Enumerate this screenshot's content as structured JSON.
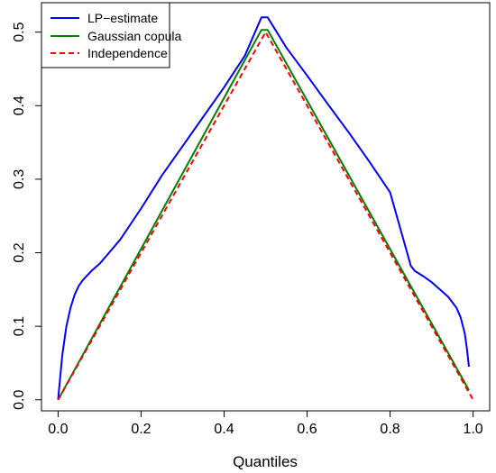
{
  "chart_data": {
    "type": "line",
    "xlabel": "Quantiles",
    "ylabel": "",
    "xlim": [
      -0.04,
      1.04
    ],
    "ylim": [
      -0.015,
      0.54
    ],
    "xticks": [
      0.0,
      0.2,
      0.4,
      0.6,
      0.8,
      1.0
    ],
    "xtick_labels": [
      "0.0",
      "0.2",
      "0.4",
      "0.6",
      "0.8",
      "1.0"
    ],
    "yticks": [
      0.0,
      0.1,
      0.2,
      0.3,
      0.4,
      0.5
    ],
    "ytick_labels": [
      "0.0",
      "0.1",
      "0.2",
      "0.3",
      "0.4",
      "0.5"
    ],
    "grid": false,
    "legend_position": "top-left",
    "series": [
      {
        "name": "LP−estimate",
        "color": "#0000ff",
        "dash": "solid",
        "points": [
          [
            0.0,
            0.0
          ],
          [
            0.005,
            0.03
          ],
          [
            0.01,
            0.06
          ],
          [
            0.02,
            0.1
          ],
          [
            0.03,
            0.125
          ],
          [
            0.04,
            0.143
          ],
          [
            0.05,
            0.155
          ],
          [
            0.06,
            0.163
          ],
          [
            0.08,
            0.175
          ],
          [
            0.1,
            0.185
          ],
          [
            0.12,
            0.198
          ],
          [
            0.15,
            0.218
          ],
          [
            0.2,
            0.26
          ],
          [
            0.25,
            0.305
          ],
          [
            0.3,
            0.345
          ],
          [
            0.35,
            0.385
          ],
          [
            0.4,
            0.425
          ],
          [
            0.45,
            0.468
          ],
          [
            0.49,
            0.52
          ],
          [
            0.505,
            0.52
          ],
          [
            0.55,
            0.479
          ],
          [
            0.6,
            0.441
          ],
          [
            0.65,
            0.402
          ],
          [
            0.7,
            0.364
          ],
          [
            0.75,
            0.324
          ],
          [
            0.8,
            0.282
          ],
          [
            0.85,
            0.182
          ],
          [
            0.86,
            0.175
          ],
          [
            0.88,
            0.168
          ],
          [
            0.9,
            0.16
          ],
          [
            0.92,
            0.15
          ],
          [
            0.94,
            0.14
          ],
          [
            0.96,
            0.125
          ],
          [
            0.97,
            0.112
          ],
          [
            0.98,
            0.09
          ],
          [
            0.985,
            0.07
          ],
          [
            0.99,
            0.045
          ]
        ]
      },
      {
        "name": "Gaussian copula",
        "color": "#008000",
        "dash": "solid",
        "points": [
          [
            0.0,
            0.0
          ],
          [
            0.49,
            0.503
          ],
          [
            0.505,
            0.503
          ],
          [
            0.99,
            0.013
          ]
        ]
      },
      {
        "name": "Independence",
        "color": "#ff0000",
        "dash": "dashed",
        "points": [
          [
            0.0,
            0.0
          ],
          [
            0.5,
            0.5
          ],
          [
            1.0,
            0.0
          ]
        ]
      }
    ]
  }
}
